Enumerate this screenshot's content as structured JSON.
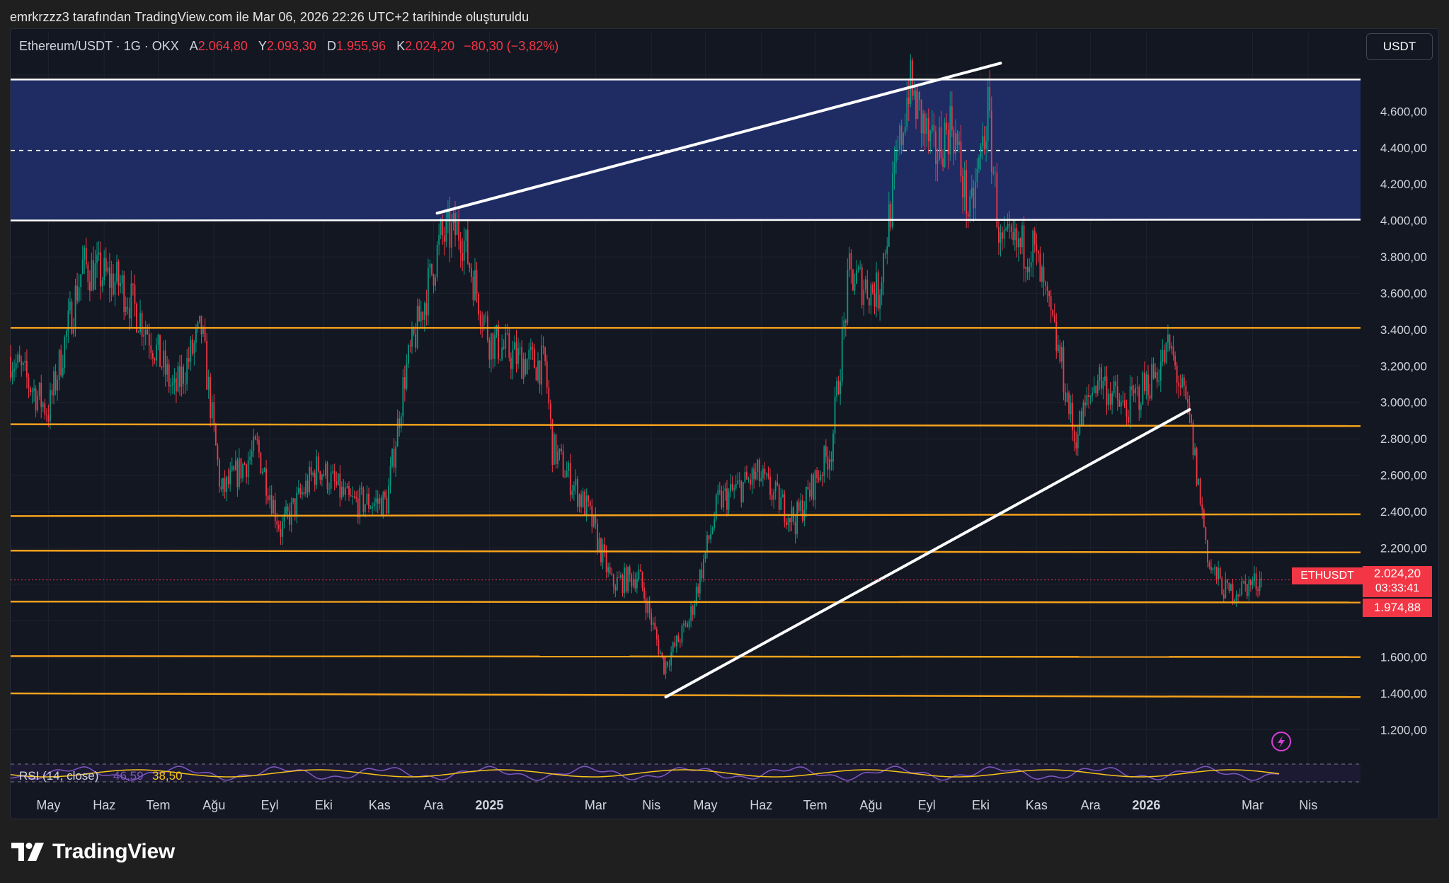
{
  "header": {
    "attribution": "emrkrzzz3 tarafından TradingView.com ile Mar 06, 2026 22:26 UTC+2 tarihinde oluşturuldu"
  },
  "symbol": {
    "name": "Ethereum/USDT · 1G · OKX",
    "open_label": "A",
    "open": "2.064,80",
    "high_label": "Y",
    "high": "2.093,30",
    "low_label": "D",
    "low": "1.955,96",
    "close_label": "K",
    "close": "2.024,20",
    "change": "−80,30 (−3,82%)"
  },
  "currency_button": "USDT",
  "price_tags": {
    "ticker": "ETHUSDT",
    "last_price": "2.024,20",
    "countdown": "03:33:41",
    "level_price": "1.974,88"
  },
  "rsi": {
    "label": "RSI (14, close)",
    "value1": "46,59",
    "value2": "38,50"
  },
  "logo": "TradingView",
  "colors": {
    "up": "#089981",
    "down": "#f23645",
    "zone": "#1e2c63",
    "level": "#f7a21b",
    "trendline": "#ffffff",
    "rsi_line": "#7e57c2",
    "rsi_ma": "#f5c518"
  },
  "chart_data": {
    "type": "candlestick",
    "title": "Ethereum/USDT · 1G · OKX",
    "y_ticks": [
      1200,
      1400,
      1600,
      1800,
      2000,
      2200,
      2400,
      2600,
      2800,
      3000,
      3200,
      3400,
      3600,
      3800,
      4000,
      4200,
      4400,
      4600,
      4800
    ],
    "y_tick_labels": [
      "1.200,00",
      "1.400,00",
      "1.600,00",
      "",
      "",
      "2.200,00",
      "2.400,00",
      "2.600,00",
      "2.800,00",
      "3.000,00",
      "3.200,00",
      "3.400,00",
      "3.600,00",
      "3.800,00",
      "4.000,00",
      "4.200,00",
      "4.400,00",
      "4.600,00",
      ""
    ],
    "ylim": [
      1050,
      4870
    ],
    "x_labels": [
      "May",
      "Haz",
      "Tem",
      "Ağu",
      "Eyl",
      "Eki",
      "Kas",
      "Ara",
      "2025",
      "Mar",
      "Nis",
      "May",
      "Haz",
      "Tem",
      "Ağu",
      "Eyl",
      "Eki",
      "Kas",
      "Ara",
      "2026",
      "Mar",
      "Nis"
    ],
    "x_label_bold": [
      "2025",
      "2026"
    ],
    "x_range": [
      "2024-04-10",
      "2026-04-30"
    ],
    "x_label_dates": [
      "2024-05-01",
      "2024-06-01",
      "2024-07-01",
      "2024-08-01",
      "2024-09-01",
      "2024-10-01",
      "2024-11-01",
      "2024-12-01",
      "2025-01-01",
      "2025-03-01",
      "2025-04-01",
      "2025-05-01",
      "2025-06-01",
      "2025-07-01",
      "2025-08-01",
      "2025-09-01",
      "2025-10-01",
      "2025-11-01",
      "2025-12-01",
      "2026-01-01",
      "2026-03-01",
      "2026-04-01"
    ],
    "price_path": [
      {
        "date": "2024-04-10",
        "close": 3250
      },
      {
        "date": "2024-05-01",
        "close": 2950
      },
      {
        "date": "2024-05-20",
        "close": 3750
      },
      {
        "date": "2024-06-10",
        "close": 3650
      },
      {
        "date": "2024-06-25",
        "close": 3400
      },
      {
        "date": "2024-07-10",
        "close": 3050
      },
      {
        "date": "2024-07-25",
        "close": 3400
      },
      {
        "date": "2024-08-05",
        "close": 2500
      },
      {
        "date": "2024-08-25",
        "close": 2750
      },
      {
        "date": "2024-09-07",
        "close": 2300
      },
      {
        "date": "2024-09-28",
        "close": 2650
      },
      {
        "date": "2024-10-15",
        "close": 2450
      },
      {
        "date": "2024-11-05",
        "close": 2450
      },
      {
        "date": "2024-11-15",
        "close": 3150
      },
      {
        "date": "2024-12-05",
        "close": 3900
      },
      {
        "date": "2024-12-16",
        "close": 3950
      },
      {
        "date": "2025-01-01",
        "close": 3350
      },
      {
        "date": "2025-01-15",
        "close": 3250
      },
      {
        "date": "2025-02-01",
        "close": 3200
      },
      {
        "date": "2025-02-05",
        "close": 2750
      },
      {
        "date": "2025-02-25",
        "close": 2400
      },
      {
        "date": "2025-03-10",
        "close": 2000
      },
      {
        "date": "2025-03-25",
        "close": 2050
      },
      {
        "date": "2025-04-08",
        "close": 1550
      },
      {
        "date": "2025-04-22",
        "close": 1800
      },
      {
        "date": "2025-05-08",
        "close": 2450
      },
      {
        "date": "2025-05-30",
        "close": 2600
      },
      {
        "date": "2025-06-20",
        "close": 2350
      },
      {
        "date": "2025-07-10",
        "close": 2750
      },
      {
        "date": "2025-07-20",
        "close": 3700
      },
      {
        "date": "2025-08-05",
        "close": 3600
      },
      {
        "date": "2025-08-22",
        "close": 4750
      },
      {
        "date": "2025-09-05",
        "close": 4350
      },
      {
        "date": "2025-09-15",
        "close": 4550
      },
      {
        "date": "2025-09-25",
        "close": 4000
      },
      {
        "date": "2025-10-05",
        "close": 4600
      },
      {
        "date": "2025-10-12",
        "close": 3850
      },
      {
        "date": "2025-10-30",
        "close": 3850
      },
      {
        "date": "2025-11-15",
        "close": 3200
      },
      {
        "date": "2025-11-22",
        "close": 2800
      },
      {
        "date": "2025-12-05",
        "close": 3150
      },
      {
        "date": "2025-12-20",
        "close": 2950
      },
      {
        "date": "2026-01-05",
        "close": 3150
      },
      {
        "date": "2026-01-14",
        "close": 3300
      },
      {
        "date": "2026-01-25",
        "close": 2900
      },
      {
        "date": "2026-02-05",
        "close": 2100
      },
      {
        "date": "2026-02-15",
        "close": 1950
      },
      {
        "date": "2026-03-06",
        "close": 2024.2
      }
    ],
    "resistance_zone": {
      "from": 4000,
      "to": 4775,
      "mid": 4385
    },
    "horizontal_levels": [
      {
        "y0": 4775,
        "y1": 4775,
        "color": "white"
      },
      {
        "y0": 4000,
        "y1": 4005,
        "color": "white"
      },
      {
        "y0": 3410,
        "y1": 3410,
        "color": "orange"
      },
      {
        "y0": 2880,
        "y1": 2870,
        "color": "orange"
      },
      {
        "y0": 2375,
        "y1": 2385,
        "color": "orange"
      },
      {
        "y0": 2185,
        "y1": 2175,
        "color": "orange"
      },
      {
        "y0": 1905,
        "y1": 1900,
        "color": "orange"
      },
      {
        "y0": 1605,
        "y1": 1600,
        "color": "orange"
      },
      {
        "y0": 1400,
        "y1": 1380,
        "color": "orange"
      }
    ],
    "trendlines": [
      {
        "from": [
          "2024-12-03",
          4040
        ],
        "to": [
          "2025-10-12",
          4865
        ]
      },
      {
        "from": [
          "2025-04-09",
          1380
        ],
        "to": [
          "2026-01-25",
          2960
        ]
      }
    ],
    "last_price": 2024.2,
    "level_price": 1974.88
  }
}
